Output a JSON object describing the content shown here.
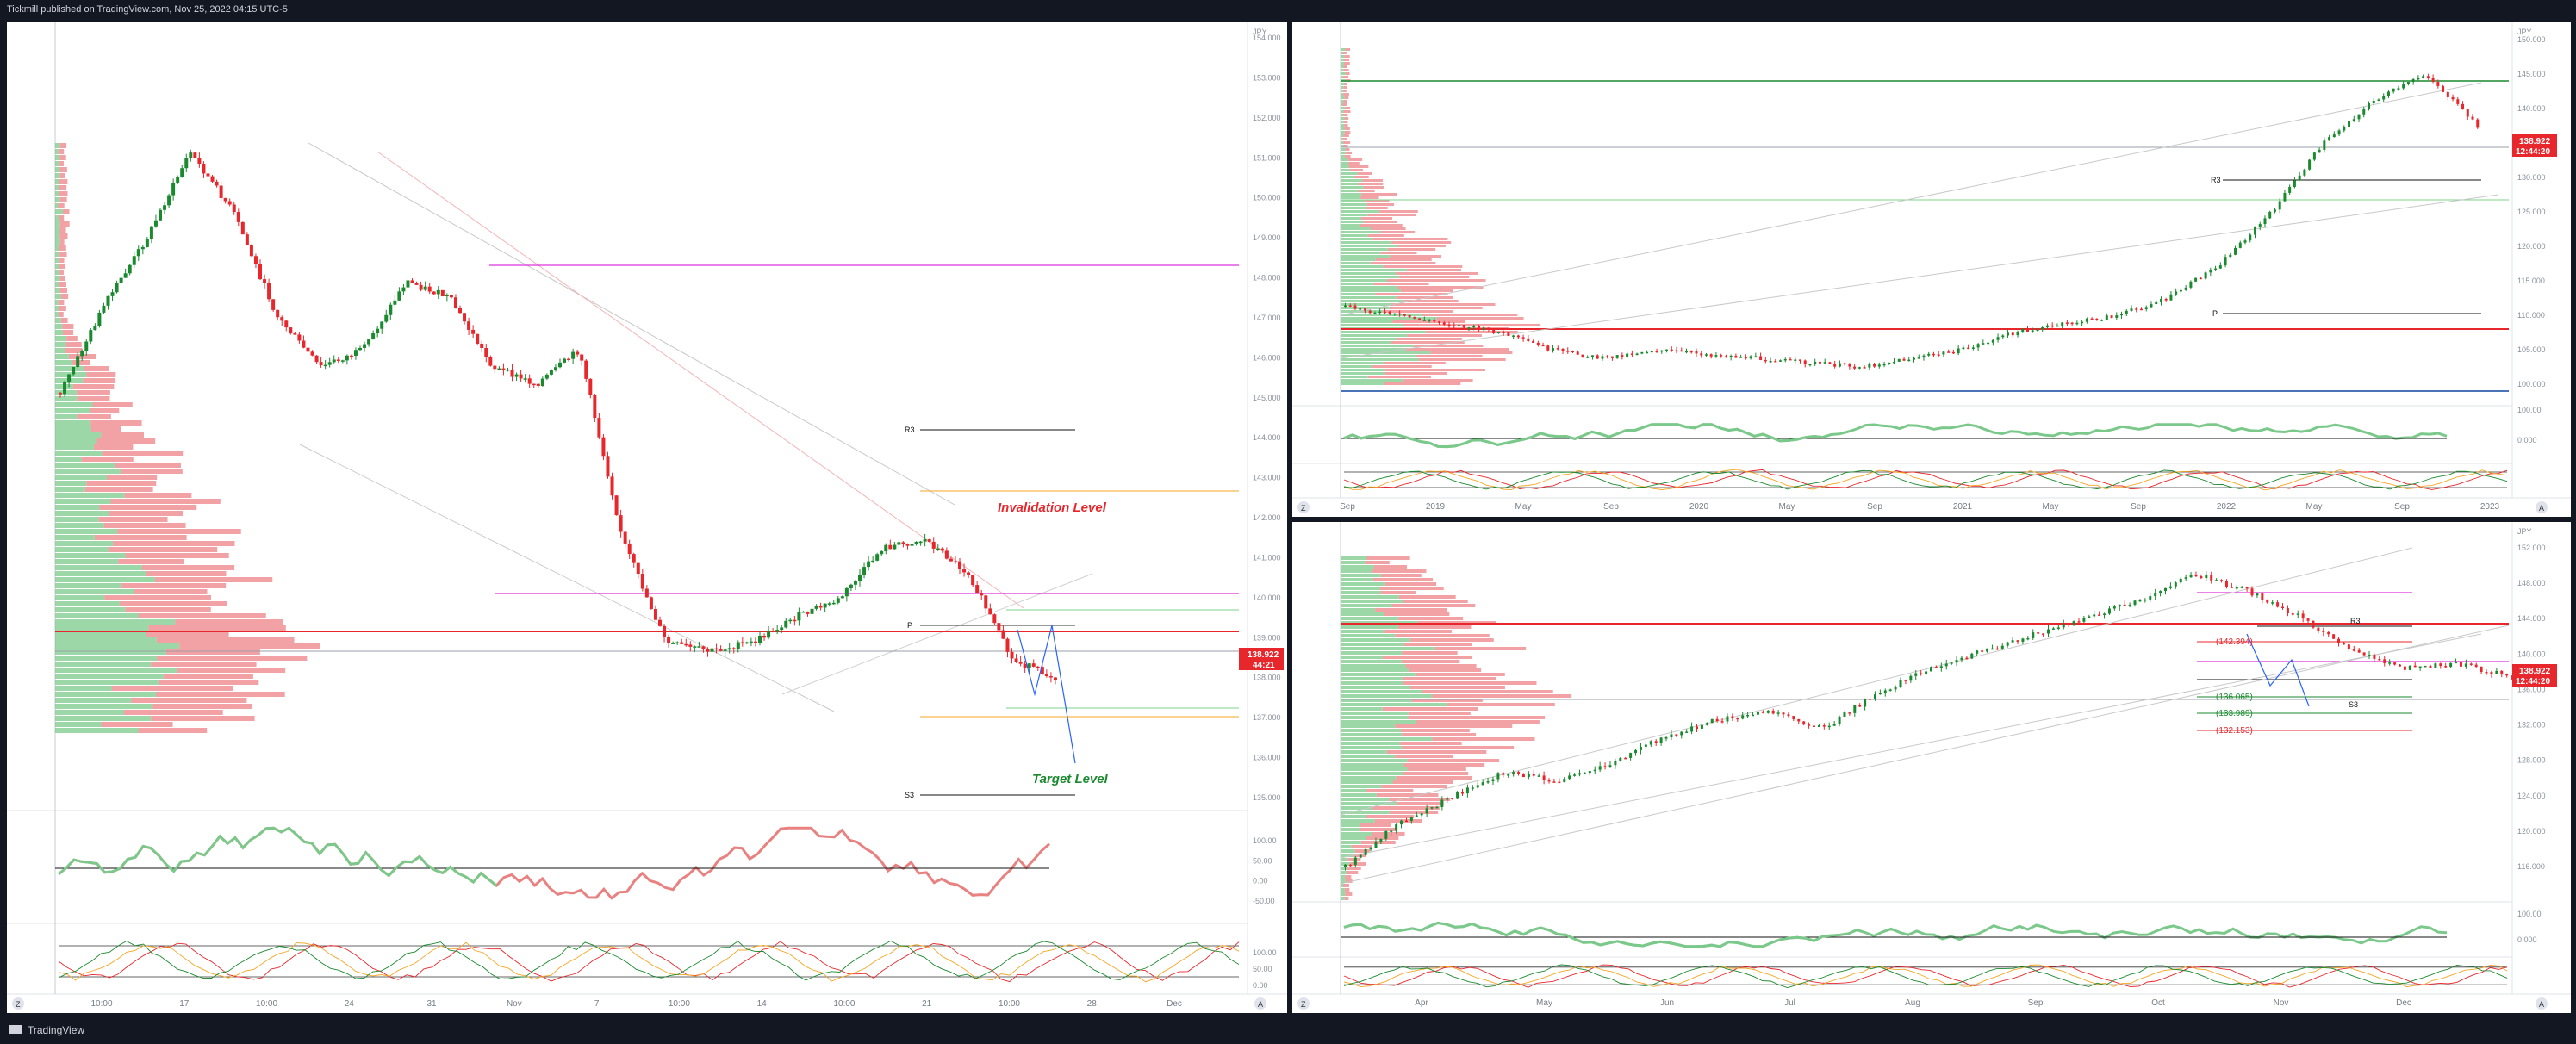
{
  "header": {
    "publisher_text": "Tickmill published on TradingView.com, Nov 25, 2022 04:15 UTC-5"
  },
  "footer": {
    "brand": "TradingView"
  },
  "colors": {
    "bull": "#1b8a2f",
    "bear": "#e8272d",
    "bg": "#131722",
    "panel": "#ffffff"
  },
  "left_chart": {
    "currency": "JPY",
    "price_axis": [
      "154.000",
      "153.000",
      "152.000",
      "151.000",
      "150.000",
      "149.000",
      "148.000",
      "147.000",
      "146.000",
      "145.000",
      "144.000",
      "143.000",
      "142.000",
      "141.000",
      "140.000",
      "139.000",
      "138.000",
      "137.000",
      "136.000",
      "135.000"
    ],
    "last_price": "138.922",
    "countdown": "44:21",
    "annotations": {
      "invalidation": "Invalidation Level",
      "target": "Target Level",
      "r3": "R3",
      "s3": "S3",
      "pivot": "P"
    },
    "time_axis": [
      "10:00",
      "17",
      "10:00",
      "24",
      "31",
      "Nov",
      "7",
      "10:00",
      "14",
      "10:00",
      "21",
      "10:00",
      "28",
      "Dec"
    ],
    "rsi_axis": [
      "100.00",
      "50.00",
      "0.00",
      "-50.00"
    ],
    "osc_axis": [
      "100.00",
      "50.00",
      "0.00"
    ],
    "zoom_btn": "Z",
    "auto_btn": "A"
  },
  "right_top_chart": {
    "currency": "JPY",
    "price_axis": [
      "150.000",
      "145.000",
      "140.000",
      "135.000",
      "130.000",
      "125.000",
      "120.000",
      "115.000",
      "110.000",
      "105.000",
      "100.000"
    ],
    "last_price": "138.922",
    "countdown": "12:44:20",
    "annotations": {
      "r3": "R3",
      "pivot": "P"
    },
    "time_axis": [
      "Sep",
      "2019",
      "May",
      "Sep",
      "2020",
      "May",
      "Sep",
      "2021",
      "May",
      "Sep",
      "2022",
      "May",
      "Sep",
      "2023"
    ],
    "rsi_axis": [
      "100.00",
      "0.000"
    ],
    "osc_axis": [
      "0.00"
    ],
    "zoom_btn": "Z",
    "auto_btn": "A"
  },
  "right_bottom_chart": {
    "currency": "JPY",
    "price_axis": [
      "152.000",
      "148.000",
      "144.000",
      "140.000",
      "136.000",
      "132.000",
      "128.000",
      "124.000",
      "120.000",
      "116.000"
    ],
    "last_price": "138.922",
    "countdown": "12:44:20",
    "levels": [
      "(142.394)",
      "(136.065)",
      "(133.989)",
      "(132.153)"
    ],
    "annotations": {
      "r3": "R3",
      "s3": "S3"
    },
    "time_axis": [
      "Apr",
      "May",
      "Jun",
      "Jul",
      "Aug",
      "Sep",
      "Oct",
      "Nov",
      "Dec"
    ],
    "rsi_axis": [
      "100.00",
      "0.000"
    ],
    "osc_axis": [
      "0.00"
    ],
    "zoom_btn": "Z",
    "auto_btn": "A"
  }
}
